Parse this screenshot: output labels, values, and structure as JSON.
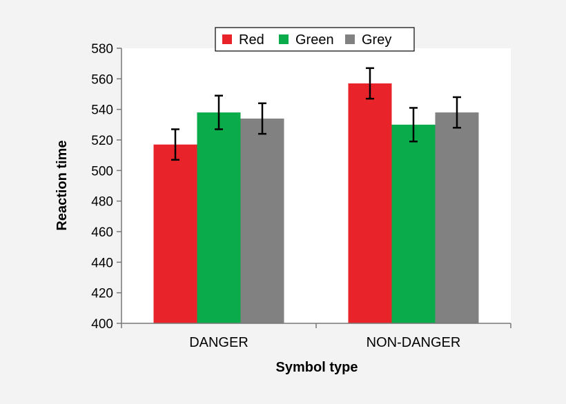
{
  "colors": {
    "background": "#f3f3f3",
    "plot": "#ffffff",
    "Red": "#e8242a",
    "Green": "#0aab4a",
    "Grey": "#818181"
  },
  "chart_data": {
    "type": "bar",
    "categories": [
      "DANGER",
      "NON-DANGER"
    ],
    "series": [
      {
        "name": "Red",
        "values": [
          517,
          557
        ],
        "errors": [
          10,
          10
        ]
      },
      {
        "name": "Green",
        "values": [
          538,
          530
        ],
        "errors": [
          11,
          11
        ]
      },
      {
        "name": "Grey",
        "values": [
          534,
          538
        ],
        "errors": [
          10,
          10
        ]
      }
    ],
    "xlabel": "Symbol type",
    "ylabel": "Reaction time",
    "ylim": [
      400,
      580
    ],
    "yticks": [
      400,
      420,
      440,
      460,
      480,
      500,
      520,
      540,
      560,
      580
    ],
    "legend_position": "top-center",
    "grid": false
  }
}
